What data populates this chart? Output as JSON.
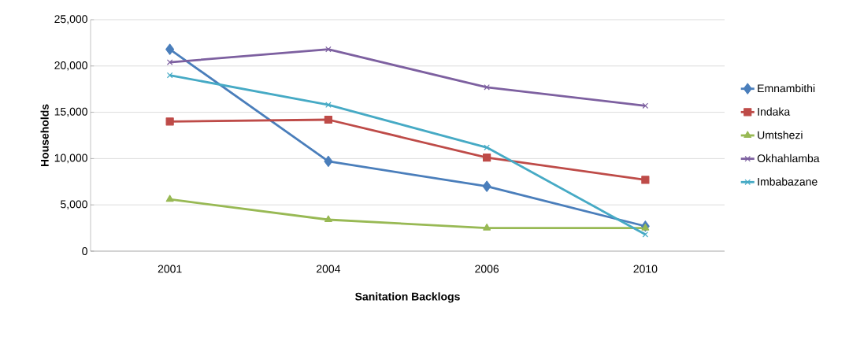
{
  "chart_data": {
    "type": "line",
    "xlabel": "Sanitation Backlogs",
    "ylabel": "Households",
    "categories": [
      "2001",
      "2004",
      "2006",
      "2010"
    ],
    "series": [
      {
        "name": "Emnambithi",
        "color": "#4a7ebb",
        "marker": "diamond",
        "values": [
          21800,
          9700,
          7000,
          2700
        ]
      },
      {
        "name": "Indaka",
        "color": "#be4b48",
        "marker": "square",
        "values": [
          14000,
          14200,
          10100,
          7700
        ]
      },
      {
        "name": "Umtshezi",
        "color": "#98b954",
        "marker": "triangle",
        "values": [
          5600,
          3400,
          2500,
          2500
        ]
      },
      {
        "name": "Okhahlamba",
        "color": "#7d60a0",
        "marker": "cross",
        "values": [
          20400,
          21800,
          17700,
          15700
        ]
      },
      {
        "name": "Imbabazane",
        "color": "#46aac5",
        "marker": "cross",
        "values": [
          19000,
          15800,
          11200,
          1800
        ]
      }
    ],
    "ylim": [
      0,
      25000
    ],
    "yticks": [
      {
        "value": 0,
        "label": "0"
      },
      {
        "value": 5000,
        "label": "5,000"
      },
      {
        "value": 10000,
        "label": "10,000"
      },
      {
        "value": 15000,
        "label": "15,000"
      },
      {
        "value": 20000,
        "label": "20,000"
      },
      {
        "value": 25000,
        "label": "25,000"
      }
    ],
    "grid": "y",
    "legend": "right",
    "line_style": "solid"
  }
}
